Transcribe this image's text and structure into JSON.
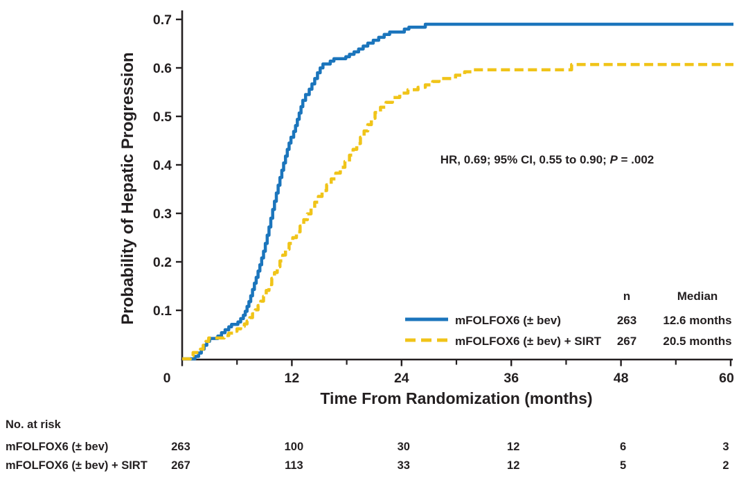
{
  "colors": {
    "arm1_blue": "#1B75BC",
    "arm2_yellow": "#F0C419",
    "axis_black": "#231F20",
    "background": "#FFFFFF"
  },
  "chart_data": {
    "type": "line",
    "subtype": "kaplan-meier-cumulative-incidence-steps",
    "title": "",
    "xlabel": "Time From Randomization (months)",
    "ylabel": "Probability of Hepatic Progression",
    "xlim": [
      0,
      60
    ],
    "ylim": [
      0,
      0.7
    ],
    "xticks": [
      0,
      12,
      24,
      36,
      48,
      60
    ],
    "xminorticks": [
      6,
      18,
      30,
      42,
      54
    ],
    "yticks": [
      0.1,
      0.2,
      0.3,
      0.4,
      0.5,
      0.6,
      0.7
    ],
    "grid": false,
    "legend_position": "lower right",
    "annotation": {
      "prefix": "HR, 0.69; 95% CI, 0.55 to 0.90; ",
      "p_symbol": "P",
      "p_rest": " = .002"
    },
    "legend": {
      "n_header": "n",
      "median_header": "Median"
    },
    "series": [
      {
        "name": "mFOLFOX6 (± bev)",
        "style": "solid",
        "color": "#1B75BC",
        "n": "263",
        "median": "12.6 months",
        "points": [
          [
            0,
            0
          ],
          [
            1.4,
            0.005
          ],
          [
            1.8,
            0.012
          ],
          [
            2.1,
            0.02
          ],
          [
            2.4,
            0.028
          ],
          [
            2.7,
            0.036
          ],
          [
            3.0,
            0.042
          ],
          [
            3.9,
            0.047
          ],
          [
            4.3,
            0.054
          ],
          [
            4.7,
            0.06
          ],
          [
            5.1,
            0.066
          ],
          [
            5.4,
            0.071
          ],
          [
            6.1,
            0.076
          ],
          [
            6.4,
            0.083
          ],
          [
            6.7,
            0.09
          ],
          [
            6.9,
            0.098
          ],
          [
            7.1,
            0.108
          ],
          [
            7.3,
            0.118
          ],
          [
            7.5,
            0.13
          ],
          [
            7.7,
            0.143
          ],
          [
            7.9,
            0.156
          ],
          [
            8.1,
            0.168
          ],
          [
            8.3,
            0.181
          ],
          [
            8.5,
            0.194
          ],
          [
            8.7,
            0.208
          ],
          [
            8.9,
            0.222
          ],
          [
            9.1,
            0.238
          ],
          [
            9.3,
            0.255
          ],
          [
            9.5,
            0.272
          ],
          [
            9.7,
            0.29
          ],
          [
            9.9,
            0.308
          ],
          [
            10.1,
            0.325
          ],
          [
            10.3,
            0.342
          ],
          [
            10.5,
            0.358
          ],
          [
            10.7,
            0.374
          ],
          [
            10.9,
            0.389
          ],
          [
            11.1,
            0.404
          ],
          [
            11.3,
            0.418
          ],
          [
            11.5,
            0.432
          ],
          [
            11.7,
            0.445
          ],
          [
            11.9,
            0.457
          ],
          [
            12.2,
            0.469
          ],
          [
            12.4,
            0.481
          ],
          [
            12.6,
            0.494
          ],
          [
            12.8,
            0.507
          ],
          [
            13.0,
            0.52
          ],
          [
            13.2,
            0.533
          ],
          [
            13.5,
            0.545
          ],
          [
            13.9,
            0.556
          ],
          [
            14.2,
            0.567
          ],
          [
            14.5,
            0.578
          ],
          [
            14.8,
            0.59
          ],
          [
            15.1,
            0.6
          ],
          [
            15.4,
            0.608
          ],
          [
            16.2,
            0.614
          ],
          [
            16.6,
            0.619
          ],
          [
            17.9,
            0.623
          ],
          [
            18.3,
            0.628
          ],
          [
            18.8,
            0.633
          ],
          [
            19.3,
            0.639
          ],
          [
            19.8,
            0.645
          ],
          [
            20.3,
            0.651
          ],
          [
            20.9,
            0.657
          ],
          [
            21.5,
            0.663
          ],
          [
            22.1,
            0.669
          ],
          [
            22.7,
            0.674
          ],
          [
            24.3,
            0.68
          ],
          [
            24.8,
            0.684
          ],
          [
            26.6,
            0.69
          ],
          [
            60.3,
            0.69
          ]
        ]
      },
      {
        "name": "mFOLFOX6 (± bev) + SIRT",
        "style": "dashed",
        "color": "#F0C419",
        "n": "267",
        "median": "20.5 months",
        "points": [
          [
            0,
            0
          ],
          [
            0.9,
            0.006
          ],
          [
            1.2,
            0.013
          ],
          [
            2.0,
            0.02
          ],
          [
            2.3,
            0.028
          ],
          [
            2.6,
            0.036
          ],
          [
            2.9,
            0.043
          ],
          [
            4.6,
            0.048
          ],
          [
            5.1,
            0.053
          ],
          [
            5.6,
            0.057
          ],
          [
            6.0,
            0.062
          ],
          [
            6.4,
            0.067
          ],
          [
            6.8,
            0.072
          ],
          [
            7.1,
            0.078
          ],
          [
            7.4,
            0.085
          ],
          [
            7.7,
            0.093
          ],
          [
            8.0,
            0.101
          ],
          [
            8.3,
            0.11
          ],
          [
            8.6,
            0.119
          ],
          [
            8.9,
            0.129
          ],
          [
            9.2,
            0.141
          ],
          [
            9.5,
            0.153
          ],
          [
            9.8,
            0.166
          ],
          [
            10.1,
            0.178
          ],
          [
            10.4,
            0.19
          ],
          [
            10.7,
            0.202
          ],
          [
            11.0,
            0.214
          ],
          [
            11.3,
            0.226
          ],
          [
            11.7,
            0.238
          ],
          [
            12.1,
            0.25
          ],
          [
            12.5,
            0.262
          ],
          [
            12.9,
            0.274
          ],
          [
            13.3,
            0.287
          ],
          [
            13.7,
            0.299
          ],
          [
            14.1,
            0.311
          ],
          [
            14.5,
            0.323
          ],
          [
            14.9,
            0.335
          ],
          [
            15.3,
            0.347
          ],
          [
            15.8,
            0.359
          ],
          [
            16.3,
            0.371
          ],
          [
            16.8,
            0.383
          ],
          [
            17.3,
            0.395
          ],
          [
            17.8,
            0.407
          ],
          [
            18.3,
            0.42
          ],
          [
            18.7,
            0.432
          ],
          [
            19.1,
            0.444
          ],
          [
            19.5,
            0.457
          ],
          [
            19.9,
            0.47
          ],
          [
            20.3,
            0.483
          ],
          [
            20.7,
            0.496
          ],
          [
            21.1,
            0.508
          ],
          [
            21.7,
            0.519
          ],
          [
            22.3,
            0.529
          ],
          [
            23.0,
            0.539
          ],
          [
            23.8,
            0.548
          ],
          [
            24.7,
            0.555
          ],
          [
            25.8,
            0.56
          ],
          [
            26.6,
            0.565
          ],
          [
            27.4,
            0.572
          ],
          [
            28.1,
            0.578
          ],
          [
            29.9,
            0.585
          ],
          [
            30.9,
            0.592
          ],
          [
            31.7,
            0.596
          ],
          [
            42.6,
            0.607
          ],
          [
            60.3,
            0.607
          ]
        ]
      }
    ],
    "risk_table": {
      "title": "No. at risk",
      "times": [
        0,
        12,
        24,
        36,
        48,
        60
      ],
      "rows": [
        {
          "label": "mFOLFOX6 (± bev)",
          "counts": [
            "263",
            "100",
            "30",
            "12",
            "6",
            "3"
          ]
        },
        {
          "label": "mFOLFOX6 (± bev) + SIRT",
          "counts": [
            "267",
            "113",
            "33",
            "12",
            "5",
            "2"
          ]
        }
      ]
    }
  }
}
